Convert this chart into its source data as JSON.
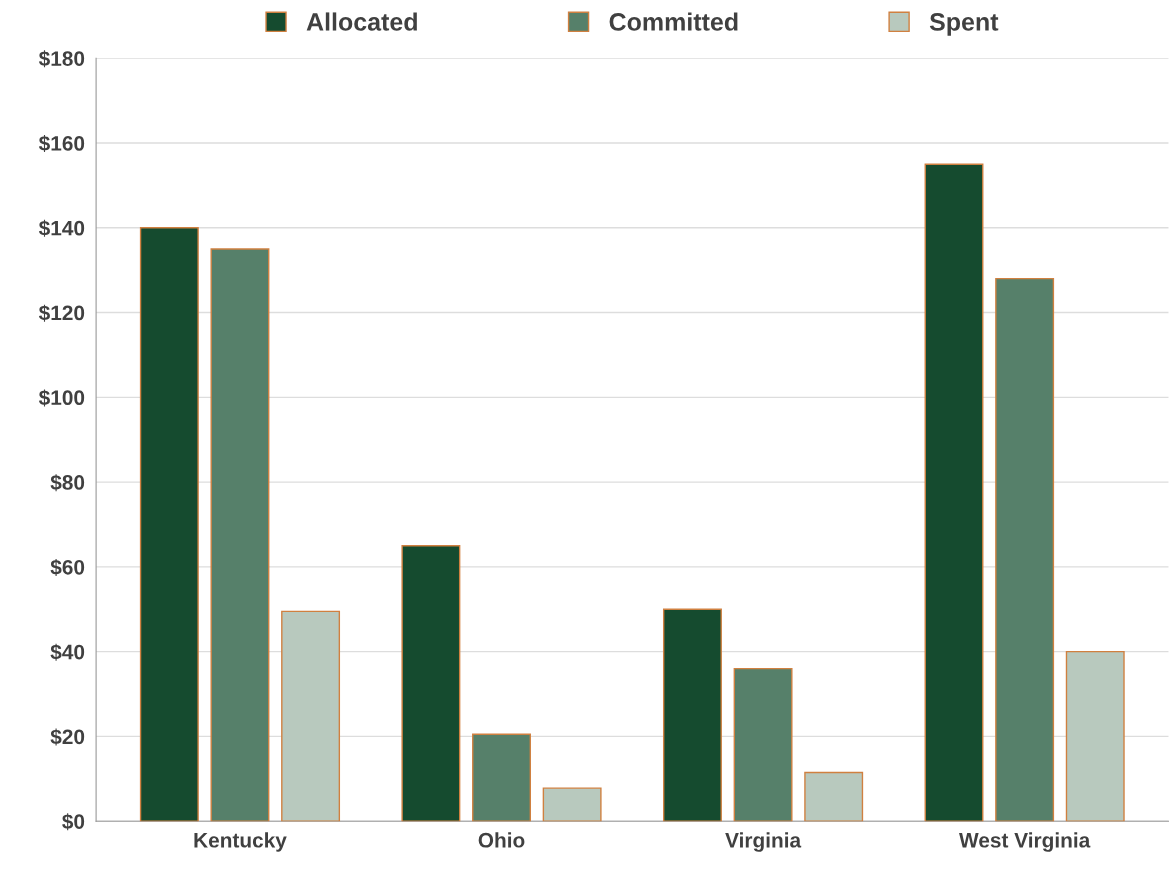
{
  "chart_data": {
    "type": "bar",
    "categories": [
      "Kentucky",
      "Ohio",
      "Virginia",
      "West Virginia"
    ],
    "series": [
      {
        "name": "Allocated",
        "color": "#154b2f",
        "values": [
          140,
          65,
          50,
          155
        ]
      },
      {
        "name": "Committed",
        "color": "#56806a",
        "values": [
          135,
          20.5,
          36,
          128
        ]
      },
      {
        "name": "Spent",
        "color": "#b8c9be",
        "values": [
          49.5,
          7.8,
          11.5,
          40
        ]
      }
    ],
    "ylim": [
      0,
      180
    ],
    "yticks": [
      {
        "value": 0,
        "label": "$0"
      },
      {
        "value": 20,
        "label": "$20"
      },
      {
        "value": 40,
        "label": "$40"
      },
      {
        "value": 60,
        "label": "$60"
      },
      {
        "value": 80,
        "label": "$80"
      },
      {
        "value": 100,
        "label": "$100"
      },
      {
        "value": 120,
        "label": "$120"
      },
      {
        "value": 140,
        "label": "$140"
      },
      {
        "value": 160,
        "label": "$160"
      },
      {
        "value": 180,
        "label": "$180"
      }
    ],
    "grid": "y",
    "legend": "top"
  }
}
